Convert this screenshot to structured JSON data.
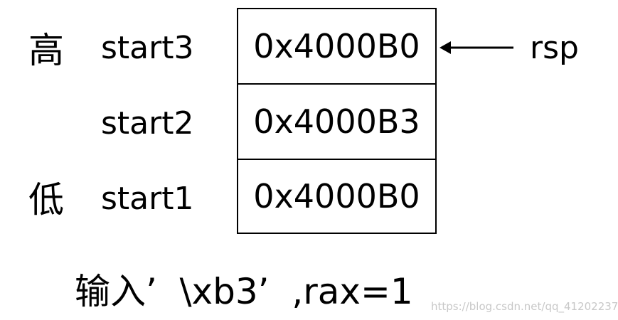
{
  "side_labels": {
    "high": "高",
    "low": "低"
  },
  "stack": {
    "rows": [
      {
        "label": "start3",
        "value": "0x4000B0"
      },
      {
        "label": "start2",
        "value": "0x4000B3"
      },
      {
        "label": "start1",
        "value": "0x4000B0"
      }
    ],
    "pointer_label": "rsp"
  },
  "caption": "输入’  \\xb3’  ,rax=1",
  "watermark": "https://blog.csdn.net/qq_41202237"
}
